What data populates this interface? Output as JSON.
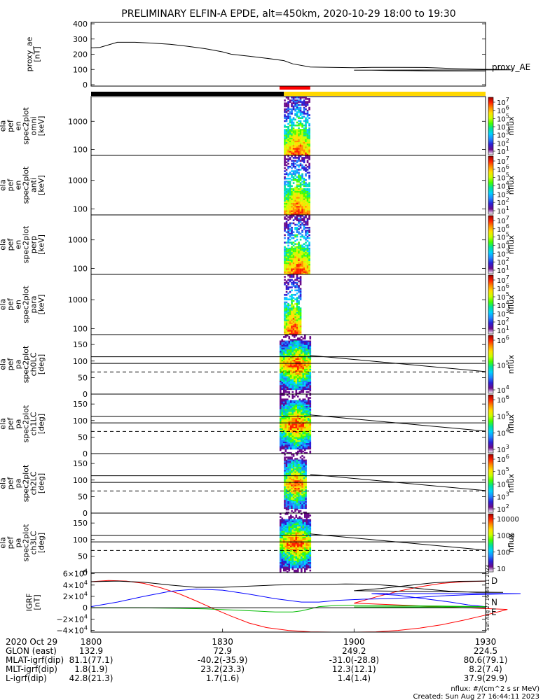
{
  "title": "PRELIMINARY ELFIN-A EPDE, alt=450km, 2020-10-29 18:00 to 19:30",
  "colors": {
    "status_black": "#000000",
    "status_gold": "#ffd700",
    "science_red": "#ff0000",
    "igrf_d": "#ff0000",
    "igrf_n": "#0000ff",
    "igrf_e": "#00bb00",
    "igrf_total": "#000000",
    "colorbar": [
      "#ffffff",
      "#6a0a8a",
      "#2a1fd6",
      "#1f86ff",
      "#00d0ff",
      "#00e09a",
      "#44ff00",
      "#ccff00",
      "#ffe000",
      "#ff8c00",
      "#ff2000",
      "#9a0000"
    ]
  },
  "chart_data": [
    {
      "type": "line",
      "panel": "proxy_ae",
      "ylabel_lines": [
        "proxy_ae",
        "[nT]"
      ],
      "yticks": [
        "400",
        "300",
        "200",
        "100",
        "0"
      ],
      "ylim": [
        0,
        400
      ],
      "series": [
        {
          "name": "proxy_AE",
          "x": [
            1800,
            1802,
            1806,
            1810,
            1814,
            1818,
            1822,
            1826,
            1828,
            1830,
            1832,
            1836,
            1840,
            1844,
            1846,
            1850,
            1856,
            1860,
            1864,
            1870,
            1876,
            1880,
            1884,
            1888,
            1892,
            1896,
            1900,
            1904,
            1908,
            1912,
            1916,
            1920,
            1924,
            1928,
            1930
          ],
          "y": [
            240,
            243,
            275,
            275,
            270,
            263,
            250,
            235,
            225,
            215,
            200,
            188,
            175,
            160,
            140,
            120,
            117,
            115,
            118,
            118,
            117,
            113,
            109,
            106,
            104,
            102,
            100,
            100,
            98,
            97,
            96,
            95,
            95,
            95,
            95
          ]
        }
      ]
    },
    {
      "type": "heatmap",
      "panel": "ela_pef_en_spec2plot_omni",
      "ylabel_lines": [
        "ela",
        "pef",
        "en",
        "spec2plot",
        "omni",
        "[keV]"
      ],
      "yscale": "log",
      "yticks": [
        "1000",
        "100"
      ],
      "colorbar": {
        "label": "nflux",
        "ticks": [
          "10^7",
          "10^6",
          "10^5",
          "10^4",
          "10^3",
          "10^2",
          "10^1"
        ]
      },
      "activity_x_range": [
        1844,
        1850
      ]
    },
    {
      "type": "heatmap",
      "panel": "ela_pef_en_spec2plot_anti",
      "ylabel_lines": [
        "ela",
        "pef",
        "en",
        "spec2plot",
        "anti",
        "[keV]"
      ],
      "yscale": "log",
      "yticks": [
        "1000",
        "100"
      ],
      "colorbar": {
        "label": "nflux",
        "ticks": [
          "10^7",
          "10^6",
          "10^5",
          "10^4",
          "10^3",
          "10^2",
          "10^1"
        ]
      },
      "activity_x_range": [
        1844,
        1850
      ]
    },
    {
      "type": "heatmap",
      "panel": "ela_pef_en_spec2plot_perp",
      "ylabel_lines": [
        "ela",
        "pef",
        "en",
        "spec2plot",
        "perp",
        "[keV]"
      ],
      "yscale": "log",
      "yticks": [
        "1000",
        "100"
      ],
      "colorbar": {
        "label": "nflux",
        "ticks": [
          "10^7",
          "10^6",
          "10^5",
          "10^4",
          "10^3",
          "10^2",
          "10^1"
        ]
      },
      "activity_x_range": [
        1844,
        1850
      ]
    },
    {
      "type": "heatmap",
      "panel": "ela_pef_en_spec2plot_para",
      "ylabel_lines": [
        "ela",
        "pef",
        "en",
        "spec2plot",
        "para",
        "[keV]"
      ],
      "yscale": "log",
      "yticks": [
        "1000",
        "100"
      ],
      "colorbar": {
        "label": "nflux",
        "ticks": [
          "10^7",
          "10^6",
          "10^5",
          "10^4",
          "10^3",
          "10^2",
          "10^1"
        ]
      },
      "activity_x_range": [
        1844,
        1848
      ]
    },
    {
      "type": "heatmap",
      "panel": "ela_pef_pa_spec2plot_ch0LC",
      "ylabel_lines": [
        "ela",
        "pef",
        "pa",
        "spec2plot",
        "ch0LC",
        "[deg]"
      ],
      "yticks": [
        "150",
        "100",
        "50",
        "0"
      ],
      "ylim": [
        0,
        180
      ],
      "colorbar": {
        "label": "nflux",
        "ticks": [
          "10^6",
          "10^5",
          "10^4"
        ]
      },
      "activity_x_range": [
        1843,
        1850
      ],
      "lines": {
        "solid_upper": {
          "x": [
            1850,
            1930
          ],
          "y": [
            117,
            68
          ]
        },
        "solid_const_upper": 113,
        "solid_const_lower": 93,
        "dashed_const": 67
      }
    },
    {
      "type": "heatmap",
      "panel": "ela_pef_pa_spec2plot_ch1LC",
      "ylabel_lines": [
        "ela",
        "pef",
        "pa",
        "spec2plot",
        "ch1LC",
        "[deg]"
      ],
      "yticks": [
        "150",
        "100",
        "50",
        "0"
      ],
      "ylim": [
        0,
        180
      ],
      "colorbar": {
        "label": "nflux",
        "ticks": [
          "10^6",
          "10^5",
          "10^4",
          "10^3"
        ]
      },
      "activity_x_range": [
        1843,
        1850
      ],
      "lines": {
        "solid_upper": {
          "x": [
            1850,
            1930
          ],
          "y": [
            117,
            68
          ]
        },
        "solid_const_upper": 113,
        "solid_const_lower": 93,
        "dashed_const": 67
      }
    },
    {
      "type": "heatmap",
      "panel": "ela_pef_pa_spec2plot_ch2LC",
      "ylabel_lines": [
        "ela",
        "pef",
        "pa",
        "spec2plot",
        "ch2LC",
        "[deg]"
      ],
      "yticks": [
        "150",
        "100",
        "50",
        "0"
      ],
      "ylim": [
        0,
        180
      ],
      "colorbar": {
        "label": "nflux",
        "ticks": [
          "10^6",
          "10^5",
          "10^4",
          "10^3",
          "10^2"
        ]
      },
      "activity_x_range": [
        1844,
        1849
      ],
      "lines": {
        "solid_upper": {
          "x": [
            1850,
            1930
          ],
          "y": [
            117,
            68
          ]
        },
        "solid_const_upper": 113,
        "solid_const_lower": 93,
        "dashed_const": 67
      }
    },
    {
      "type": "heatmap",
      "panel": "ela_pef_pa_spec2plot_ch3LC",
      "ylabel_lines": [
        "ela",
        "pef",
        "pa",
        "spec2plot",
        "ch3LC",
        "[deg]"
      ],
      "yticks": [
        "150",
        "100",
        "50",
        "0"
      ],
      "ylim": [
        0,
        180
      ],
      "colorbar": {
        "label": "nflux",
        "ticks": [
          "10000",
          "1000",
          "100",
          "10"
        ]
      },
      "activity_x_range": [
        1843,
        1850
      ],
      "lines": {
        "solid_upper": {
          "x": [
            1850,
            1930
          ],
          "y": [
            117,
            68
          ]
        },
        "solid_const_upper": 113,
        "solid_const_lower": 93,
        "dashed_const": 67
      }
    },
    {
      "type": "line",
      "panel": "IGRF",
      "ylabel_lines": [
        "IGRF",
        "[nT]"
      ],
      "yticks": [
        "6×10^4",
        "4×10^4",
        "2×10^4",
        "0",
        "−2×10^4",
        "−4×10^4"
      ],
      "ylim": [
        -43000,
        62000
      ],
      "series": [
        {
          "name": "D",
          "x": [
            1800,
            1804,
            1808,
            1812,
            1816,
            1820,
            1824,
            1828,
            1832,
            1836,
            1840,
            1845,
            1850,
            1855,
            1860,
            1865,
            1870,
            1875,
            1880,
            1885,
            1890,
            1895,
            1900,
            1905,
            1910,
            1915,
            1920,
            1925,
            1930
          ],
          "y": [
            46000,
            48000,
            47000,
            43000,
            35000,
            25000,
            12000,
            -2000,
            -15000,
            -27000,
            -35000,
            -40000,
            -42500,
            -43000,
            -43000,
            -42500,
            -40000,
            -36000,
            -30000,
            -22000,
            -13000,
            -3000,
            8000,
            19000,
            29000,
            37000,
            43000,
            46000,
            47000
          ]
        },
        {
          "name": "N",
          "x": [
            1800,
            1806,
            1812,
            1818,
            1824,
            1830,
            1836,
            1842,
            1848,
            1852,
            1856,
            1862,
            1868,
            1874,
            1880,
            1886,
            1892,
            1898,
            1904,
            1910,
            1916,
            1922,
            1926,
            1930
          ],
          "y": [
            2000,
            10000,
            20000,
            29000,
            33000,
            31000,
            24000,
            16000,
            10000,
            10000,
            13000,
            15000,
            16000,
            18000,
            21000,
            23000,
            24000,
            25000,
            25000,
            22000,
            16000,
            10000,
            5000,
            2000
          ]
        },
        {
          "name": "E",
          "x": [
            1800,
            1810,
            1820,
            1826,
            1832,
            1838,
            1842,
            1846,
            1848,
            1850,
            1852,
            1856,
            1860,
            1870,
            1880,
            1890,
            1900,
            1910,
            1920,
            1930
          ],
          "y": [
            0,
            0,
            -1000,
            -2000,
            -4000,
            -6000,
            -7500,
            -7500,
            -5500,
            -2000,
            2000,
            4000,
            4500,
            3500,
            3000,
            2000,
            1500,
            1000,
            500,
            0
          ]
        },
        {
          "name": "",
          "x": [
            1800,
            1806,
            1812,
            1818,
            1824,
            1830,
            1836,
            1842,
            1848,
            1852,
            1858,
            1864,
            1870,
            1876,
            1882,
            1888,
            1894,
            1900,
            1906,
            1912,
            1918,
            1924,
            1930
          ],
          "y": [
            46000,
            47000,
            45000,
            40000,
            36000,
            36000,
            38000,
            40000,
            41000,
            41000,
            42000,
            41500,
            38000,
            33000,
            29000,
            27000,
            27000,
            30000,
            34000,
            39000,
            44000,
            46500,
            47000
          ]
        }
      ],
      "series_labels": [
        "D",
        "N",
        "E"
      ]
    }
  ],
  "xaxis": {
    "ticks": [
      "1800",
      "1830",
      "1900",
      "1930"
    ],
    "range": [
      1800,
      1930
    ]
  },
  "ephemeris": {
    "date_label": "2020 Oct 29",
    "rows": [
      {
        "label": "GLON (east)",
        "values": [
          "132.9",
          "72.9",
          "249.2",
          "224.5"
        ]
      },
      {
        "label": "MLAT-igrf(dip)",
        "values": [
          "81.1(77.1)",
          "-40.2(-35.9)",
          "-31.0(-28.8)",
          "80.6(79.1)"
        ]
      },
      {
        "label": "MLT-igrf(dip)",
        "values": [
          "1.8(1.9)",
          "23.2(23.3)",
          "12.3(12.1)",
          "8.2(7.4)"
        ]
      },
      {
        "label": "L-igrf(dip)",
        "values": [
          "42.8(21.3)",
          "1.7(1.6)",
          "1.4(1.4)",
          "37.9(29.9)"
        ]
      }
    ]
  },
  "igrf_side_stamp": "Sun Aug 27 16:44:11 2023",
  "proxy_label": "proxy_AE",
  "footer": {
    "units": "nflux: #/(cm^2 s sr MeV)",
    "created": "Created: Sun Aug 27 16:44:11 2023"
  }
}
